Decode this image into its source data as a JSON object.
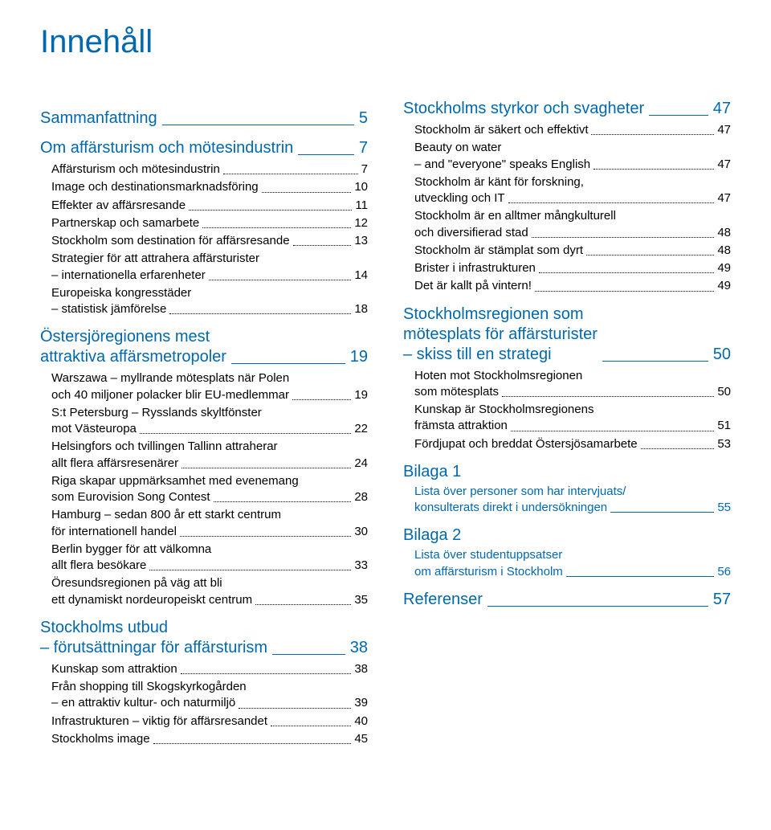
{
  "title": "Innehåll",
  "colors": {
    "accent": "#0068ac",
    "text": "#000000",
    "bg": "#ffffff"
  },
  "typography": {
    "title_fontsize": 40,
    "section_fontsize": 20,
    "entry_fontsize": 15
  },
  "left": [
    {
      "type": "section",
      "lines": [
        "Sammanfattning"
      ],
      "page": "5"
    },
    {
      "type": "section",
      "lines": [
        "Om affärsturism och mötesindustrin"
      ],
      "page": "7"
    },
    {
      "type": "entry",
      "lines": [
        "Affärsturism och mötesindustrin"
      ],
      "page": "7"
    },
    {
      "type": "entry",
      "lines": [
        "Image och destinationsmarknadsföring"
      ],
      "page": "10"
    },
    {
      "type": "entry",
      "lines": [
        "Effekter av affärsresande"
      ],
      "page": "11"
    },
    {
      "type": "entry",
      "lines": [
        "Partnerskap och samarbete"
      ],
      "page": "12"
    },
    {
      "type": "entry",
      "lines": [
        "Stockholm som destination för affärsresande"
      ],
      "page": "13"
    },
    {
      "type": "entry",
      "lines": [
        "Strategier för att attrahera affärsturister",
        "– internationella erfarenheter"
      ],
      "page": "14"
    },
    {
      "type": "entry",
      "lines": [
        "Europeiska kongresstäder",
        "– statistisk jämförelse"
      ],
      "page": "18"
    },
    {
      "type": "section",
      "lines": [
        "Östersjöregionens mest",
        "attraktiva affärsmetropoler"
      ],
      "page": "19"
    },
    {
      "type": "entry",
      "lines": [
        "Warszawa – myllrande mötesplats när Polen",
        "och 40 miljoner polacker blir EU-medlemmar"
      ],
      "page": "19"
    },
    {
      "type": "entry",
      "lines": [
        "S:t Petersburg – Rysslands skyltfönster",
        "mot Västeuropa"
      ],
      "page": "22"
    },
    {
      "type": "entry",
      "lines": [
        "Helsingfors och tvillingen Tallinn attraherar",
        "allt flera affärsresenärer"
      ],
      "page": "24"
    },
    {
      "type": "entry",
      "lines": [
        "Riga skapar uppmärksamhet med evenemang",
        "som Eurovision Song Contest"
      ],
      "page": "28"
    },
    {
      "type": "entry",
      "lines": [
        "Hamburg – sedan 800 år ett starkt centrum",
        "för internationell handel"
      ],
      "page": "30"
    },
    {
      "type": "entry",
      "lines": [
        "Berlin bygger för att välkomna",
        "allt flera besökare"
      ],
      "page": "33"
    },
    {
      "type": "entry",
      "lines": [
        "Öresundsregionen på väg att bli",
        "ett dynamiskt nordeuropeiskt centrum"
      ],
      "page": "35"
    },
    {
      "type": "section",
      "lines": [
        "Stockholms utbud",
        "– förutsättningar för affärsturism"
      ],
      "page": "38"
    },
    {
      "type": "entry",
      "lines": [
        "Kunskap som attraktion"
      ],
      "page": "38"
    },
    {
      "type": "entry",
      "lines": [
        "Från shopping till Skogskyrkogården",
        "– en attraktiv kultur- och naturmiljö"
      ],
      "page": "39"
    },
    {
      "type": "entry",
      "lines": [
        "Infrastrukturen – viktig för affärsresandet"
      ],
      "page": "40"
    },
    {
      "type": "entry",
      "lines": [
        "Stockholms image"
      ],
      "page": "45"
    }
  ],
  "right": [
    {
      "type": "section",
      "lines": [
        "Stockholms styrkor och svagheter"
      ],
      "page": "47",
      "tight": true
    },
    {
      "type": "entry",
      "lines": [
        "Stockholm är säkert och effektivt"
      ],
      "page": "47"
    },
    {
      "type": "entry",
      "lines": [
        "Beauty on water",
        "– and \"everyone\" speaks English"
      ],
      "page": "47"
    },
    {
      "type": "entry",
      "lines": [
        "Stockholm är känt för forskning,",
        "utveckling och IT"
      ],
      "page": "47"
    },
    {
      "type": "entry",
      "lines": [
        "Stockholm är en alltmer mångkulturell",
        "och diversifierad stad"
      ],
      "page": "48"
    },
    {
      "type": "entry",
      "lines": [
        "Stockholm är stämplat som dyrt"
      ],
      "page": "48"
    },
    {
      "type": "entry",
      "lines": [
        "Brister i infrastrukturen"
      ],
      "page": "49"
    },
    {
      "type": "entry",
      "lines": [
        "Det är kallt på vintern!"
      ],
      "page": "49"
    },
    {
      "type": "section",
      "lines": [
        "Stockholmsregionen som",
        "mötesplats för affärsturister",
        "– skiss till en strategi"
      ],
      "page": "50"
    },
    {
      "type": "entry",
      "lines": [
        "Hoten mot Stockholmsregionen",
        "som mötesplats"
      ],
      "page": "50"
    },
    {
      "type": "entry",
      "lines": [
        "Kunskap är Stockholmsregionens",
        "främsta attraktion"
      ],
      "page": "51"
    },
    {
      "type": "entry",
      "lines": [
        "Fördjupat och breddat Östersjösamarbete"
      ],
      "page": "53"
    },
    {
      "type": "section-noline",
      "lines": [
        "Bilaga 1"
      ]
    },
    {
      "type": "entry",
      "blue": true,
      "lines": [
        "Lista över personer som har intervjuats/",
        "konsulterats direkt i undersökningen"
      ],
      "page": "55",
      "underline": true
    },
    {
      "type": "section-noline",
      "lines": [
        "Bilaga 2"
      ]
    },
    {
      "type": "entry",
      "blue": true,
      "lines": [
        "Lista över studentuppsatser",
        "om affärsturism i Stockholm"
      ],
      "page": "56",
      "underline": true
    },
    {
      "type": "section",
      "lines": [
        "Referenser"
      ],
      "page": "57"
    }
  ]
}
